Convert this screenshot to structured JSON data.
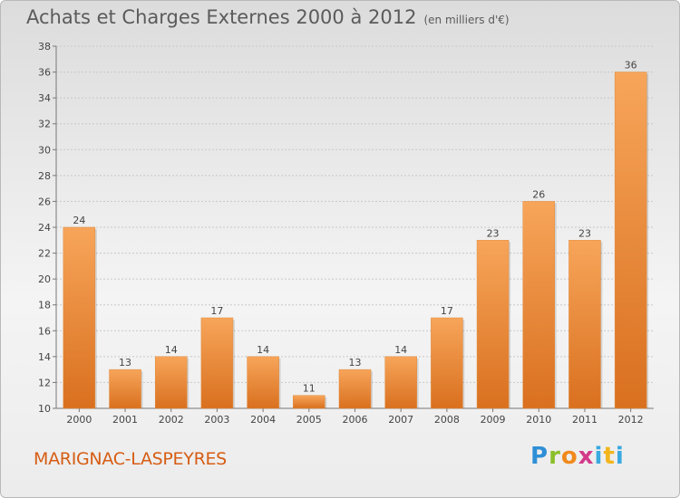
{
  "header": {
    "title": "Achats et Charges Externes 2000 à 2012",
    "subtitle": "(en milliers d'€)"
  },
  "footer": {
    "commune": "MARIGNAC-LASPEYRES",
    "logo_text": "Proxiti"
  },
  "colors": {
    "bar_light": "#f7a55a",
    "bar_dark": "#d9701f",
    "commune": "#d75d14",
    "title": "#5b5b5b"
  },
  "chart_data": {
    "type": "bar",
    "title": "Achats et Charges Externes 2000 à 2012",
    "subtitle": "(en milliers d'€)",
    "categories": [
      "2000",
      "2001",
      "2002",
      "2003",
      "2004",
      "2005",
      "2006",
      "2007",
      "2008",
      "2009",
      "2010",
      "2011",
      "2012"
    ],
    "values": [
      24,
      13,
      14,
      17,
      14,
      11,
      13,
      14,
      17,
      23,
      26,
      23,
      36
    ],
    "ylim": [
      10,
      38
    ],
    "yticks": [
      10,
      12,
      14,
      16,
      18,
      20,
      22,
      24,
      26,
      28,
      30,
      32,
      34,
      36,
      38
    ],
    "grid": true,
    "data_labels": true
  }
}
